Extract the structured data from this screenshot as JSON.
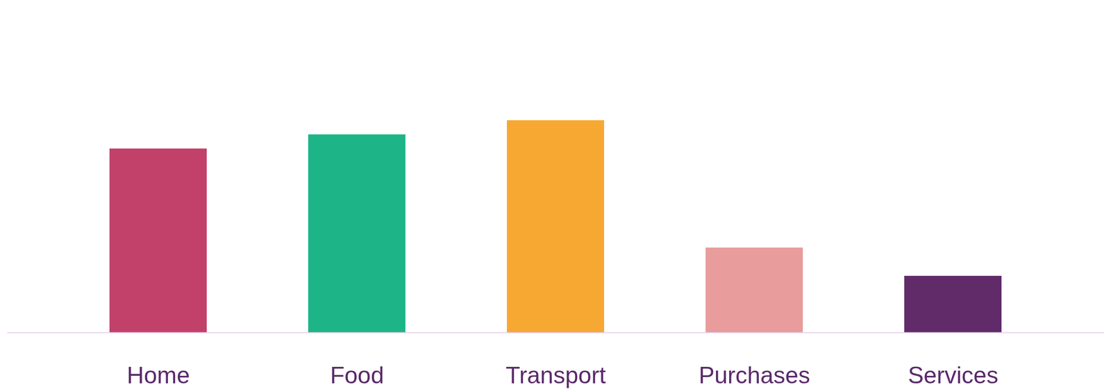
{
  "chart_data": {
    "type": "bar",
    "categories": [
      "Home",
      "Food",
      "Transport",
      "Purchases",
      "Services"
    ],
    "values": [
      2.6,
      2.8,
      3.0,
      1.2,
      0.8
    ],
    "colors": [
      "#c2416b",
      "#1db587",
      "#f7a833",
      "#e89c9c",
      "#612b6a"
    ],
    "ylim": [
      0,
      4.7
    ],
    "tick_labels": "x",
    "grid": false
  }
}
